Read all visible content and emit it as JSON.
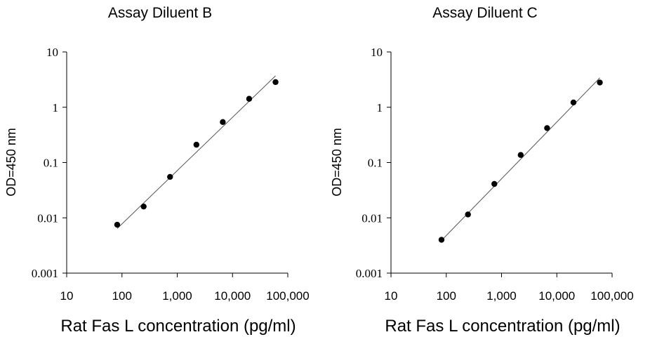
{
  "chart_data": [
    {
      "type": "scatter",
      "title": "Assay Diluent  B",
      "xlabel": "Rat Fas L concentration (pg/ml)",
      "ylabel": "OD=450 nm",
      "xscale": "log",
      "yscale": "log",
      "xlim": [
        10,
        100000
      ],
      "ylim": [
        0.001,
        10
      ],
      "x_ticks": [
        "10",
        "100",
        "1,000",
        "10,000",
        "100,000"
      ],
      "y_ticks": [
        "0.001",
        "0.01",
        "0.1",
        "1",
        "10"
      ],
      "grid": false,
      "points": {
        "x": [
          82,
          247,
          741,
          2222,
          6667,
          20000,
          60000
        ],
        "y": [
          0.0075,
          0.016,
          0.055,
          0.21,
          0.54,
          1.42,
          2.85
        ]
      },
      "fit_line": {
        "x": [
          82,
          60000
        ],
        "y": [
          0.0064,
          3.7
        ]
      }
    },
    {
      "type": "scatter",
      "title": "Assay Diluent  C",
      "xlabel": "Rat Fas L concentration (pg/ml)",
      "ylabel": "OD=450 nm",
      "xscale": "log",
      "yscale": "log",
      "xlim": [
        10,
        100000
      ],
      "ylim": [
        0.001,
        10
      ],
      "x_ticks": [
        "10",
        "100",
        "1,000",
        "10,000",
        "100,000"
      ],
      "y_ticks": [
        "0.001",
        "0.01",
        "0.1",
        "1",
        "10"
      ],
      "grid": false,
      "points": {
        "x": [
          82,
          247,
          741,
          2222,
          6667,
          20000,
          60000
        ],
        "y": [
          0.004,
          0.0115,
          0.041,
          0.137,
          0.42,
          1.22,
          2.8
        ]
      },
      "fit_line": {
        "x": [
          82,
          60000
        ],
        "y": [
          0.0039,
          3.4
        ]
      }
    }
  ]
}
